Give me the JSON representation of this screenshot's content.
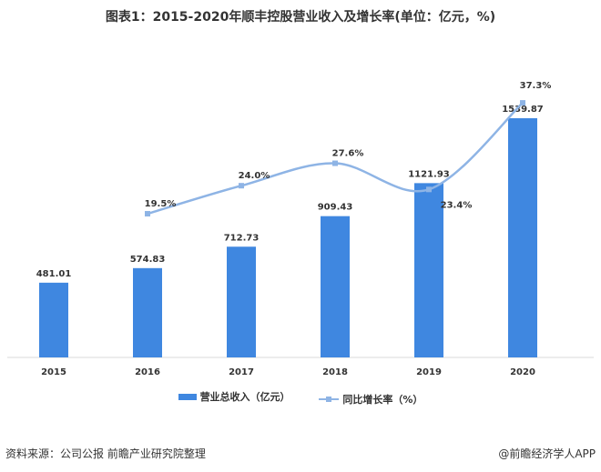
{
  "title": "图表1：2015-2020年顺丰控股营业收入及增长率(单位：亿元，%)",
  "source": "资料来源：公司公报 前瞻产业研究院整理",
  "credit": "@前瞻经济学人APP",
  "chart_data": {
    "type": "bar+line",
    "categories": [
      "2015",
      "2016",
      "2017",
      "2018",
      "2019",
      "2020"
    ],
    "series": [
      {
        "name": "营业总收入（亿元）",
        "type": "bar",
        "color": "#3F87E0",
        "values": [
          481.01,
          574.83,
          712.73,
          909.43,
          1121.93,
          1539.87
        ],
        "labels": [
          "481.01",
          "574.83",
          "712.73",
          "909.43",
          "1121.93",
          "1539.87"
        ]
      },
      {
        "name": "同比增长率（%）",
        "type": "line",
        "color": "#8EB4E5",
        "smooth": true,
        "values": [
          null,
          19.5,
          24.0,
          27.6,
          23.4,
          37.3
        ],
        "labels": [
          "",
          "19.5%",
          "24.0%",
          "27.6%",
          "23.4%",
          "37.3%"
        ]
      }
    ],
    "grid": false,
    "legend": "bottom"
  }
}
